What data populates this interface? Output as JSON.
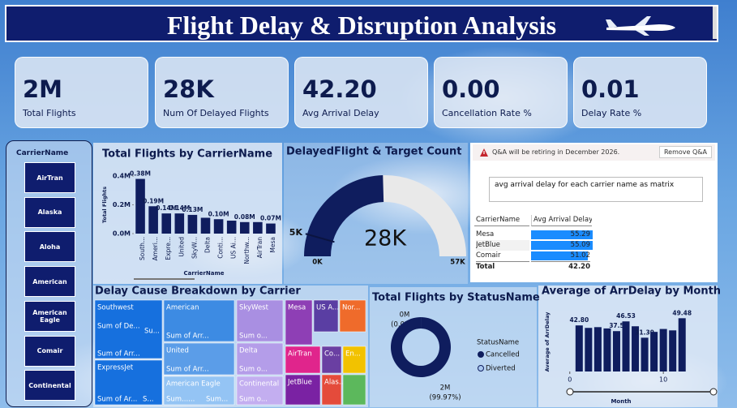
{
  "header": {
    "title": "Flight Delay & Disruption Analysis"
  },
  "kpis": [
    {
      "value": "2M",
      "label": "Total Flights"
    },
    {
      "value": "28K",
      "label": "Num Of Delayed Flights"
    },
    {
      "value": "42.20",
      "label": "Avg Arrival Delay"
    },
    {
      "value": "0.00",
      "label": "Cancellation Rate %"
    },
    {
      "value": "0.01",
      "label": "Delay Rate %"
    }
  ],
  "slicer": {
    "title": "CarrierName",
    "items": [
      "AirTran",
      "Alaska",
      "Aloha",
      "American",
      "American Eagle",
      "Comair",
      "Continental"
    ]
  },
  "qa": {
    "notice": "Q&A will be retiring in December 2026.",
    "button": "Remove Q&A",
    "query": "avg arrival delay for each carrier name as matrix",
    "table": {
      "columns": [
        "CarrierName",
        "Avg Arrival Delay"
      ],
      "rows": [
        [
          "Mesa",
          55.29
        ],
        [
          "JetBlue",
          55.09
        ],
        [
          "Comair",
          51.02
        ]
      ],
      "total": [
        "Total",
        "42.20"
      ],
      "bar_color": "#1a8cff"
    }
  },
  "treemap": {
    "title": "Delay Cause Breakdown by Carrier",
    "groups": [
      {
        "name": "Southwest",
        "color": "#1670de",
        "labels": [
          "Sum of De...",
          "Su...",
          "Sum of Arr..."
        ]
      },
      {
        "name": "ExpressJet",
        "color": "#1670de",
        "labels": [
          "Sum of Ar...",
          "S..."
        ]
      },
      {
        "name": "American",
        "color": "#3d8be3",
        "labels": [
          "Sum of Arr..."
        ]
      },
      {
        "name": "United",
        "color": "#5b9de8",
        "labels": [
          "Sum of Arr..."
        ]
      },
      {
        "name": "American Eagle",
        "color": "#94c4f4",
        "labels": [
          "Sum......",
          "Sum..."
        ]
      },
      {
        "name": "SkyWest",
        "color": "#a98fe2",
        "labels": [
          "Sum o..."
        ]
      },
      {
        "name": "Delta",
        "color": "#b49de9",
        "labels": [
          "Sum o..."
        ]
      },
      {
        "name": "Continental",
        "color": "#c3aef0",
        "labels": [
          "Sum o..."
        ]
      },
      {
        "name": "Mesa",
        "color": "#8e3fb5",
        "labels": []
      },
      {
        "name": "US A...",
        "color": "#5a3ea3",
        "labels": []
      },
      {
        "name": "Nor...",
        "color": "#ef6b2b",
        "labels": []
      },
      {
        "name": "AirTran",
        "color": "#e0258c",
        "labels": []
      },
      {
        "name": "Co...",
        "color": "#6a3fa2",
        "labels": []
      },
      {
        "name": "En...",
        "color": "#f2c200",
        "labels": []
      },
      {
        "name": "JetBlue",
        "color": "#7a22a3",
        "labels": []
      },
      {
        "name": "Alas...",
        "color": "#e44b3b",
        "labels": []
      }
    ]
  },
  "chart_data": [
    {
      "type": "bar",
      "title": "Total Flights by CarrierName",
      "xlabel": "CarrierName",
      "ylabel": "Total Flights",
      "categories": [
        "South...",
        "Ameri...",
        "Expre...",
        "United",
        "SkyW...",
        "Delta",
        "Conti...",
        "US Ai...",
        "Northw...",
        "AirTran",
        "Mesa"
      ],
      "values": [
        0.38,
        0.19,
        0.14,
        0.14,
        0.13,
        0.11,
        0.1,
        0.09,
        0.08,
        0.08,
        0.07
      ],
      "value_labels": [
        "0.38M",
        "0.19M",
        "0.14M",
        "0.14M",
        "0.13M",
        null,
        "0.10M",
        null,
        "0.08M",
        null,
        "0.07M"
      ],
      "color": "#0f1d5e",
      "ylim": [
        0,
        0.4
      ],
      "yticks": [
        {
          "value": 0,
          "label": "0.0M"
        },
        {
          "value": 0.2,
          "label": "0.2M"
        },
        {
          "value": 0.4,
          "label": "0.4M"
        }
      ]
    },
    {
      "type": "gauge",
      "title": "DelayedFlight & Target Count",
      "value": 28,
      "value_label": "28K",
      "min": 0,
      "min_label": "0K",
      "max": 57,
      "max_label": "57K",
      "target": 5,
      "target_label": "5K",
      "color": "#0f1d5e",
      "track_color": "#e9e9e9"
    },
    {
      "type": "donut",
      "title": "Total Flights by StatusName",
      "legend_title": "StatusName",
      "categories": [
        "Cancelled",
        "Diverted"
      ],
      "values": [
        0.03,
        99.97
      ],
      "value_labels": [
        "(0.03%)",
        "(99.97%)"
      ],
      "count_labels": [
        "0M",
        "2M"
      ],
      "colors": [
        "#0f1d5e",
        "#0f1d5e"
      ],
      "legend_colors": [
        "#0f1d5e",
        "#a9c8f0"
      ]
    },
    {
      "type": "bar",
      "title": "Average of ArrDelay by Month",
      "xlabel": "Month",
      "ylabel": "Average of ArrDelay",
      "x": [
        1,
        2,
        3,
        4,
        5,
        6,
        7,
        8,
        9,
        10,
        11,
        12
      ],
      "values": [
        42.8,
        40.5,
        41.2,
        40.0,
        37.5,
        46.53,
        42.0,
        31.39,
        36.8,
        39.5,
        38.2,
        49.48
      ],
      "value_labels": [
        "42.80",
        null,
        null,
        null,
        "37.5",
        "46.53",
        null,
        "31.39",
        null,
        null,
        null,
        "49.48"
      ],
      "color": "#0f1d5e",
      "xlim": [
        -0.5,
        12.5
      ],
      "xticks": [
        0,
        10
      ],
      "ylim": [
        0,
        55
      ]
    }
  ]
}
